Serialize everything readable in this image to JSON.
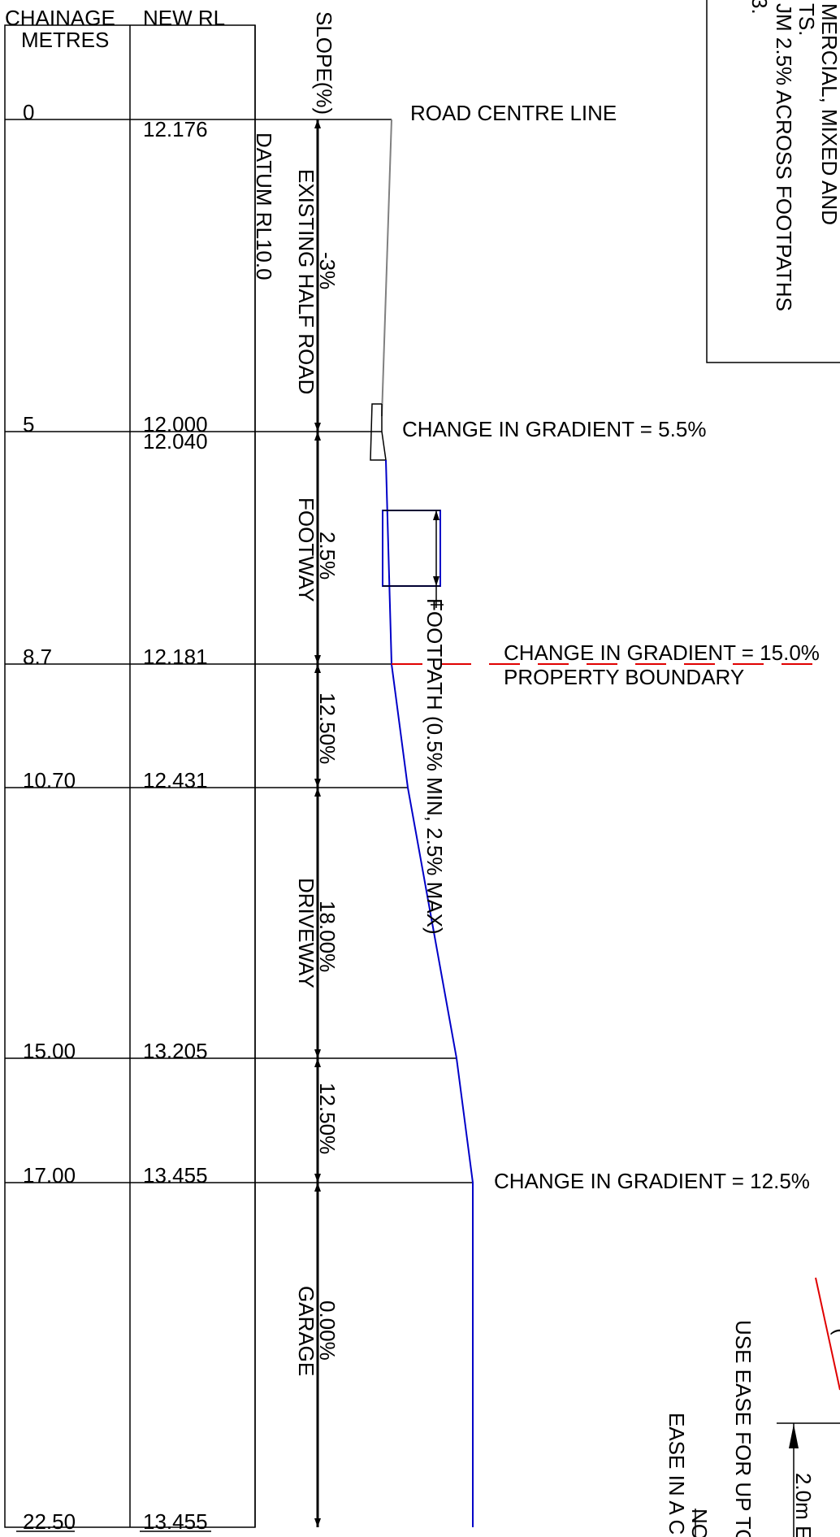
{
  "table": {
    "col_chainage_line1": "CHAINAGE",
    "col_chainage_line2": "METRES",
    "col_new_rl": "NEW RL",
    "col_slope": "SLOPE(%)",
    "datum": "DATUM RL10.0",
    "rows": [
      {
        "chainage": "0",
        "rl": "12.176"
      },
      {
        "chainage": "5",
        "rl": "12.000",
        "rl2": "12.040"
      },
      {
        "chainage": "8.7",
        "rl": "12.181"
      },
      {
        "chainage": "10.70",
        "rl": "12.431"
      },
      {
        "chainage": "15.00",
        "rl": "13.205"
      },
      {
        "chainage": "17.00",
        "rl": "13.455"
      },
      {
        "chainage": "22.50",
        "rl": "13.455"
      }
    ]
  },
  "segments": {
    "half_road": {
      "label": "EXISTING HALF ROAD",
      "slope": "-3%"
    },
    "footway": {
      "label": "FOOTWAY",
      "slope": "2.5%"
    },
    "transition_1": {
      "slope": "12.50%"
    },
    "driveway": {
      "label": "DRIVEWAY",
      "slope": "18.00%"
    },
    "transition_2": {
      "slope": "12.50%"
    },
    "garage": {
      "label": "GARAGE",
      "slope": "0.00%"
    }
  },
  "annotations": {
    "road_centre_line": "ROAD CENTRE LINE",
    "change_1": "CHANGE IN GRADIENT = 5.5%",
    "change_2": "CHANGE IN GRADIENT = 15.0%",
    "property_boundary": "PROPERTY BOUNDARY",
    "footpath": "FOOTPATH (0.5% MIN, 2.5% MAX)",
    "change_3": "CHANGE IN GRADIENT = 12.5%"
  },
  "notes_box": {
    "line1": "MERCIAL, MIXED AND",
    "line2": "TS.",
    "line3": "JM 2.5% ACROSS FOOTPATHS",
    "line4": "3."
  },
  "bottom_notes": {
    "ease_upto": "USE EASE FOR UP TO",
    "ease_in": "EASE IN A C",
    "note_prefix": "NO",
    "dim": "2.0m E",
    "partial": "("
  },
  "colors": {
    "profile": "#0000c8",
    "boundary": "#e00000",
    "road_line": "#808080",
    "linework": "#000000"
  }
}
